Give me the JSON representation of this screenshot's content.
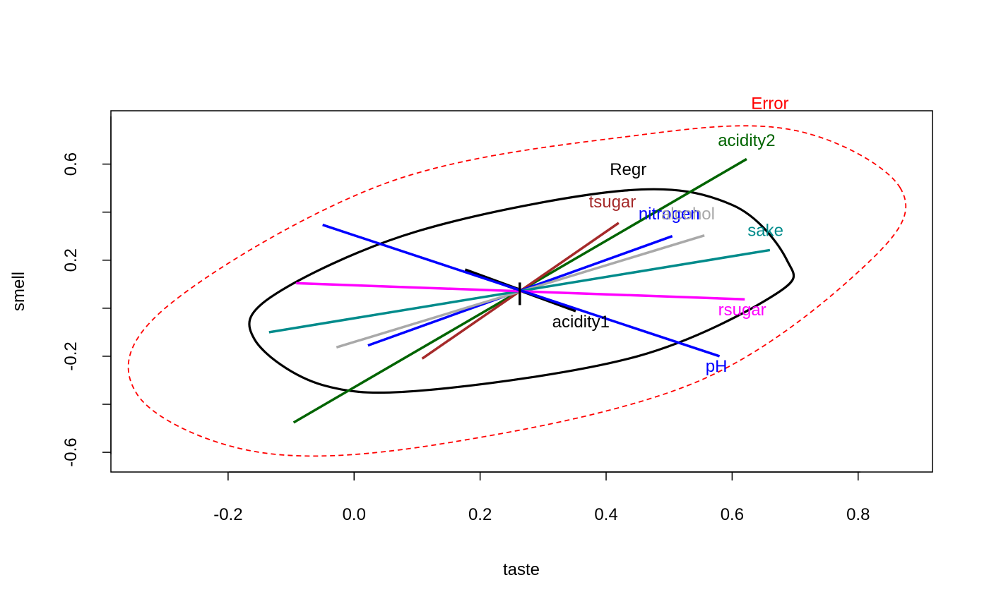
{
  "chart_data": {
    "type": "scatter",
    "title": "",
    "xlabel": "taste",
    "ylabel": "smell",
    "xlim": [
      -0.386,
      0.918
    ],
    "ylim": [
      -0.682,
      0.822
    ],
    "xticks": [
      -0.2,
      0.0,
      0.2,
      0.4,
      0.6,
      0.8
    ],
    "xtick_labels": [
      "-0.2",
      "0.0",
      "0.2",
      "0.4",
      "0.6",
      "0.8"
    ],
    "yticks": [
      -0.6,
      -0.4,
      -0.2,
      0.0,
      0.2,
      0.4,
      0.6
    ],
    "yticks_labeled": [
      -0.6,
      -0.2,
      0.2,
      0.6
    ],
    "ytick_labels": [
      "-0.6",
      "-0.2",
      "0.2",
      "0.6"
    ],
    "grid": false,
    "center": {
      "x": 0.263,
      "y": 0.06
    },
    "ellipses": [
      {
        "name": "Error",
        "color": "#ff0000",
        "style": "dashed",
        "points": [
          {
            "x": 0.867,
            "y": 0.5
          },
          {
            "x": 0.7,
            "y": 0.74
          },
          {
            "x": 0.45,
            "y": 0.72
          },
          {
            "x": 0.05,
            "y": 0.52
          },
          {
            "x": -0.3,
            "y": 0.0
          },
          {
            "x": -0.344,
            "y": -0.36
          },
          {
            "x": -0.15,
            "y": -0.6
          },
          {
            "x": 0.15,
            "y": -0.56
          },
          {
            "x": 0.55,
            "y": -0.3
          },
          {
            "x": 0.82,
            "y": 0.2
          }
        ],
        "label": {
          "text": "Error",
          "x": 0.66,
          "y": 0.83
        }
      },
      {
        "name": "Regr",
        "color": "#000000",
        "style": "solid",
        "points": [
          {
            "x": 0.687,
            "y": 0.2
          },
          {
            "x": 0.6,
            "y": 0.43
          },
          {
            "x": 0.43,
            "y": 0.49
          },
          {
            "x": 0.1,
            "y": 0.32
          },
          {
            "x": -0.13,
            "y": 0.05
          },
          {
            "x": -0.158,
            "y": -0.13
          },
          {
            "x": -0.05,
            "y": -0.32
          },
          {
            "x": 0.12,
            "y": -0.34
          },
          {
            "x": 0.45,
            "y": -0.2
          },
          {
            "x": 0.67,
            "y": 0.06
          }
        ],
        "label": {
          "text": "Regr",
          "x": 0.435,
          "y": 0.555
        }
      }
    ],
    "series": [
      {
        "name": "acidity1",
        "color": "#000000",
        "width": 5,
        "x": [
          0.176,
          0.352
        ],
        "y": [
          0.159,
          -0.01
        ],
        "label": {
          "text": "acidity1",
          "x": 0.36,
          "y": -0.08
        }
      },
      {
        "name": "acidity2",
        "color": "#006400",
        "width": 3.5,
        "x": [
          -0.096,
          0.623
        ],
        "y": [
          -0.476,
          0.621
        ],
        "label": {
          "text": "acidity2",
          "x": 0.623,
          "y": 0.675
        }
      },
      {
        "name": "tsugar",
        "color": "#a52a2a",
        "width": 3.5,
        "x": [
          0.108,
          0.42
        ],
        "y": [
          -0.21,
          0.355
        ],
        "label": {
          "text": "tsugar",
          "x": 0.41,
          "y": 0.42
        }
      },
      {
        "name": "nitrogen",
        "color": "#0000ff",
        "width": 3.5,
        "x": [
          0.022,
          0.505
        ],
        "y": [
          -0.155,
          0.3
        ],
        "label": {
          "text": "nitrogen",
          "x": 0.5,
          "y": 0.37
        }
      },
      {
        "name": "alcohol",
        "color": "#a9a9a9",
        "width": 3.5,
        "x": [
          -0.028,
          0.556
        ],
        "y": [
          -0.163,
          0.303
        ],
        "label": {
          "text": "alcohol",
          "x": 0.53,
          "y": 0.37
        }
      },
      {
        "name": "sake",
        "color": "#008b8b",
        "width": 3.5,
        "x": [
          -0.135,
          0.66
        ],
        "y": [
          -0.1,
          0.242
        ],
        "label": {
          "text": "sake",
          "x": 0.653,
          "y": 0.3
        }
      },
      {
        "name": "rsugar",
        "color": "#ff00ff",
        "width": 3.5,
        "x": [
          -0.092,
          0.62
        ],
        "y": [
          0.104,
          0.037
        ],
        "label": {
          "text": "rsugar",
          "x": 0.616,
          "y": -0.03
        }
      },
      {
        "name": "pH",
        "color": "#0000ff",
        "width": 3.5,
        "x": [
          -0.05,
          0.58
        ],
        "y": [
          0.347,
          -0.2
        ],
        "label": {
          "text": "pH",
          "x": 0.575,
          "y": -0.265
        }
      }
    ]
  }
}
